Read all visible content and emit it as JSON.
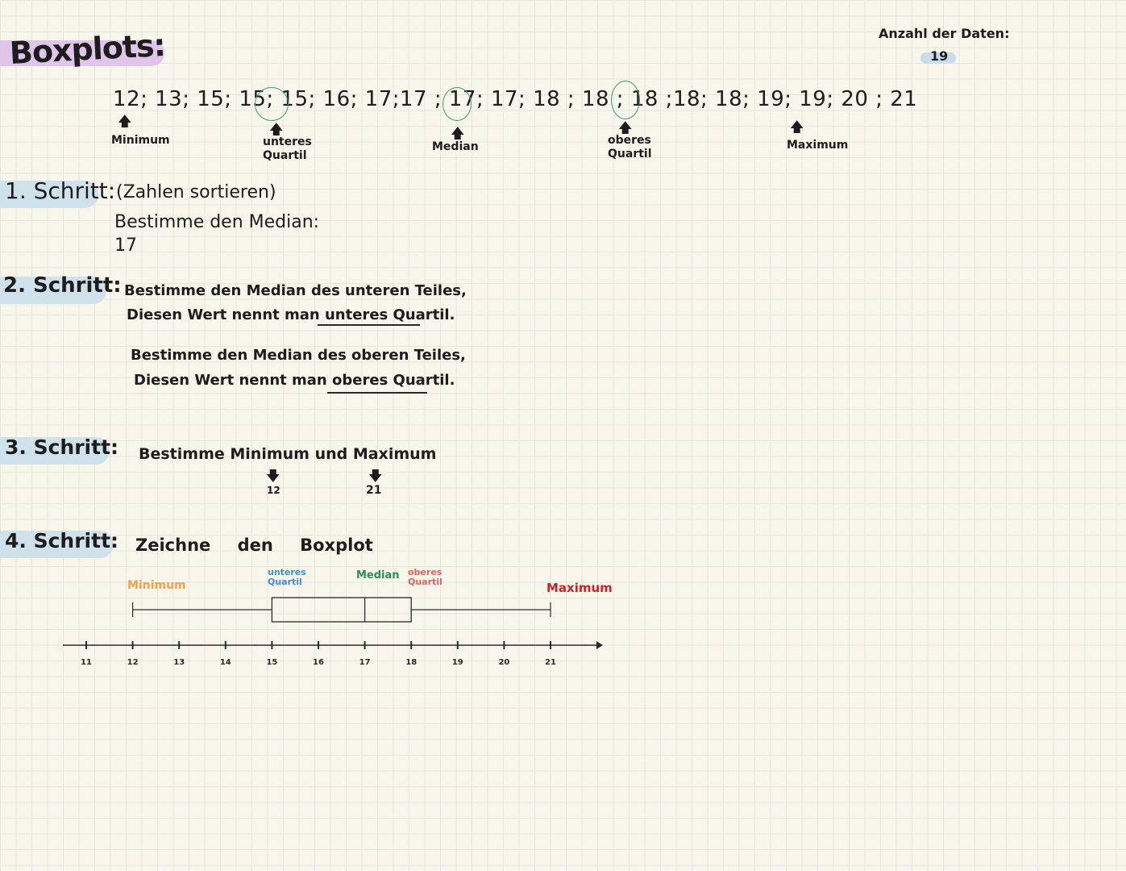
{
  "title": "Boxplots:",
  "data_count": {
    "label": "Anzahl der Daten:",
    "value": "19"
  },
  "sequence": "12; 13; 15; 15; 15; 16; 17;17 ; 17; 17; 18 ; 18 ; 18 ;18; 18; 19; 19; 20 ; 21",
  "markers": {
    "minimum": "Minimum",
    "lower_quartile": "unteres\nQuartil",
    "median": "Median",
    "upper_quartile": "oberes\nQuartil",
    "maximum": "Maximum"
  },
  "steps": [
    {
      "label": "1. Schritt:",
      "lines": [
        "(Zahlen sortieren)",
        "Bestimme den Median:",
        "17"
      ]
    },
    {
      "label": "2. Schritt:",
      "lines": [
        "Bestimme den Median des unteren Teiles,",
        "Diesen Wert nennt man unteres Quartil.",
        "Bestimme den Median des oberen Teiles,",
        "Diesen Wert nennt man oberes Quartil."
      ]
    },
    {
      "label": "3. Schritt:",
      "lines": [
        "Bestimme Minimum und Maximum"
      ],
      "min_value": "12",
      "max_value": "21"
    },
    {
      "label": "4. Schritt:",
      "lines": [
        "Zeichne den Boxplot"
      ]
    }
  ],
  "boxplot": {
    "labels": {
      "minimum": "Minimum",
      "lower_quartile": "unteres\nQuartil",
      "median": "Median",
      "upper_quartile": "oberes\nQuartil",
      "maximum": "Maximum"
    },
    "colors": {
      "minimum": "#f0a04b",
      "lower_quartile": "#3a8fd8",
      "median": "#2e8b57",
      "upper_quartile": "#e06060",
      "maximum": "#d0202a"
    },
    "axis_ticks": [
      "11",
      "12",
      "13",
      "14",
      "15",
      "16",
      "17",
      "18",
      "19",
      "20",
      "21"
    ],
    "values": {
      "min": 12,
      "q1": 15,
      "median": 17,
      "q3": 18,
      "max": 21
    }
  }
}
